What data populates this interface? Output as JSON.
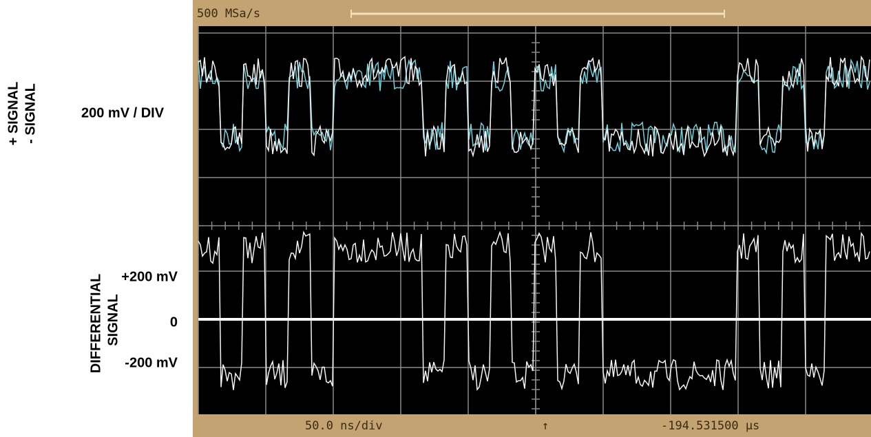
{
  "header": {
    "sample_rate": "500 MSa/s"
  },
  "labels": {
    "top_traces": [
      "+ SIGNAL",
      "- SIGNAL"
    ],
    "scale": "200 mV / DIV",
    "bottom_trace": [
      "DIFFERENTIAL",
      "SIGNAL"
    ],
    "levels": [
      "+200 mV",
      "0",
      "-200 mV"
    ]
  },
  "footer": {
    "timebase": "50.0 ns/div",
    "marker": "↑",
    "delay": "-194.531500 µs"
  }
}
